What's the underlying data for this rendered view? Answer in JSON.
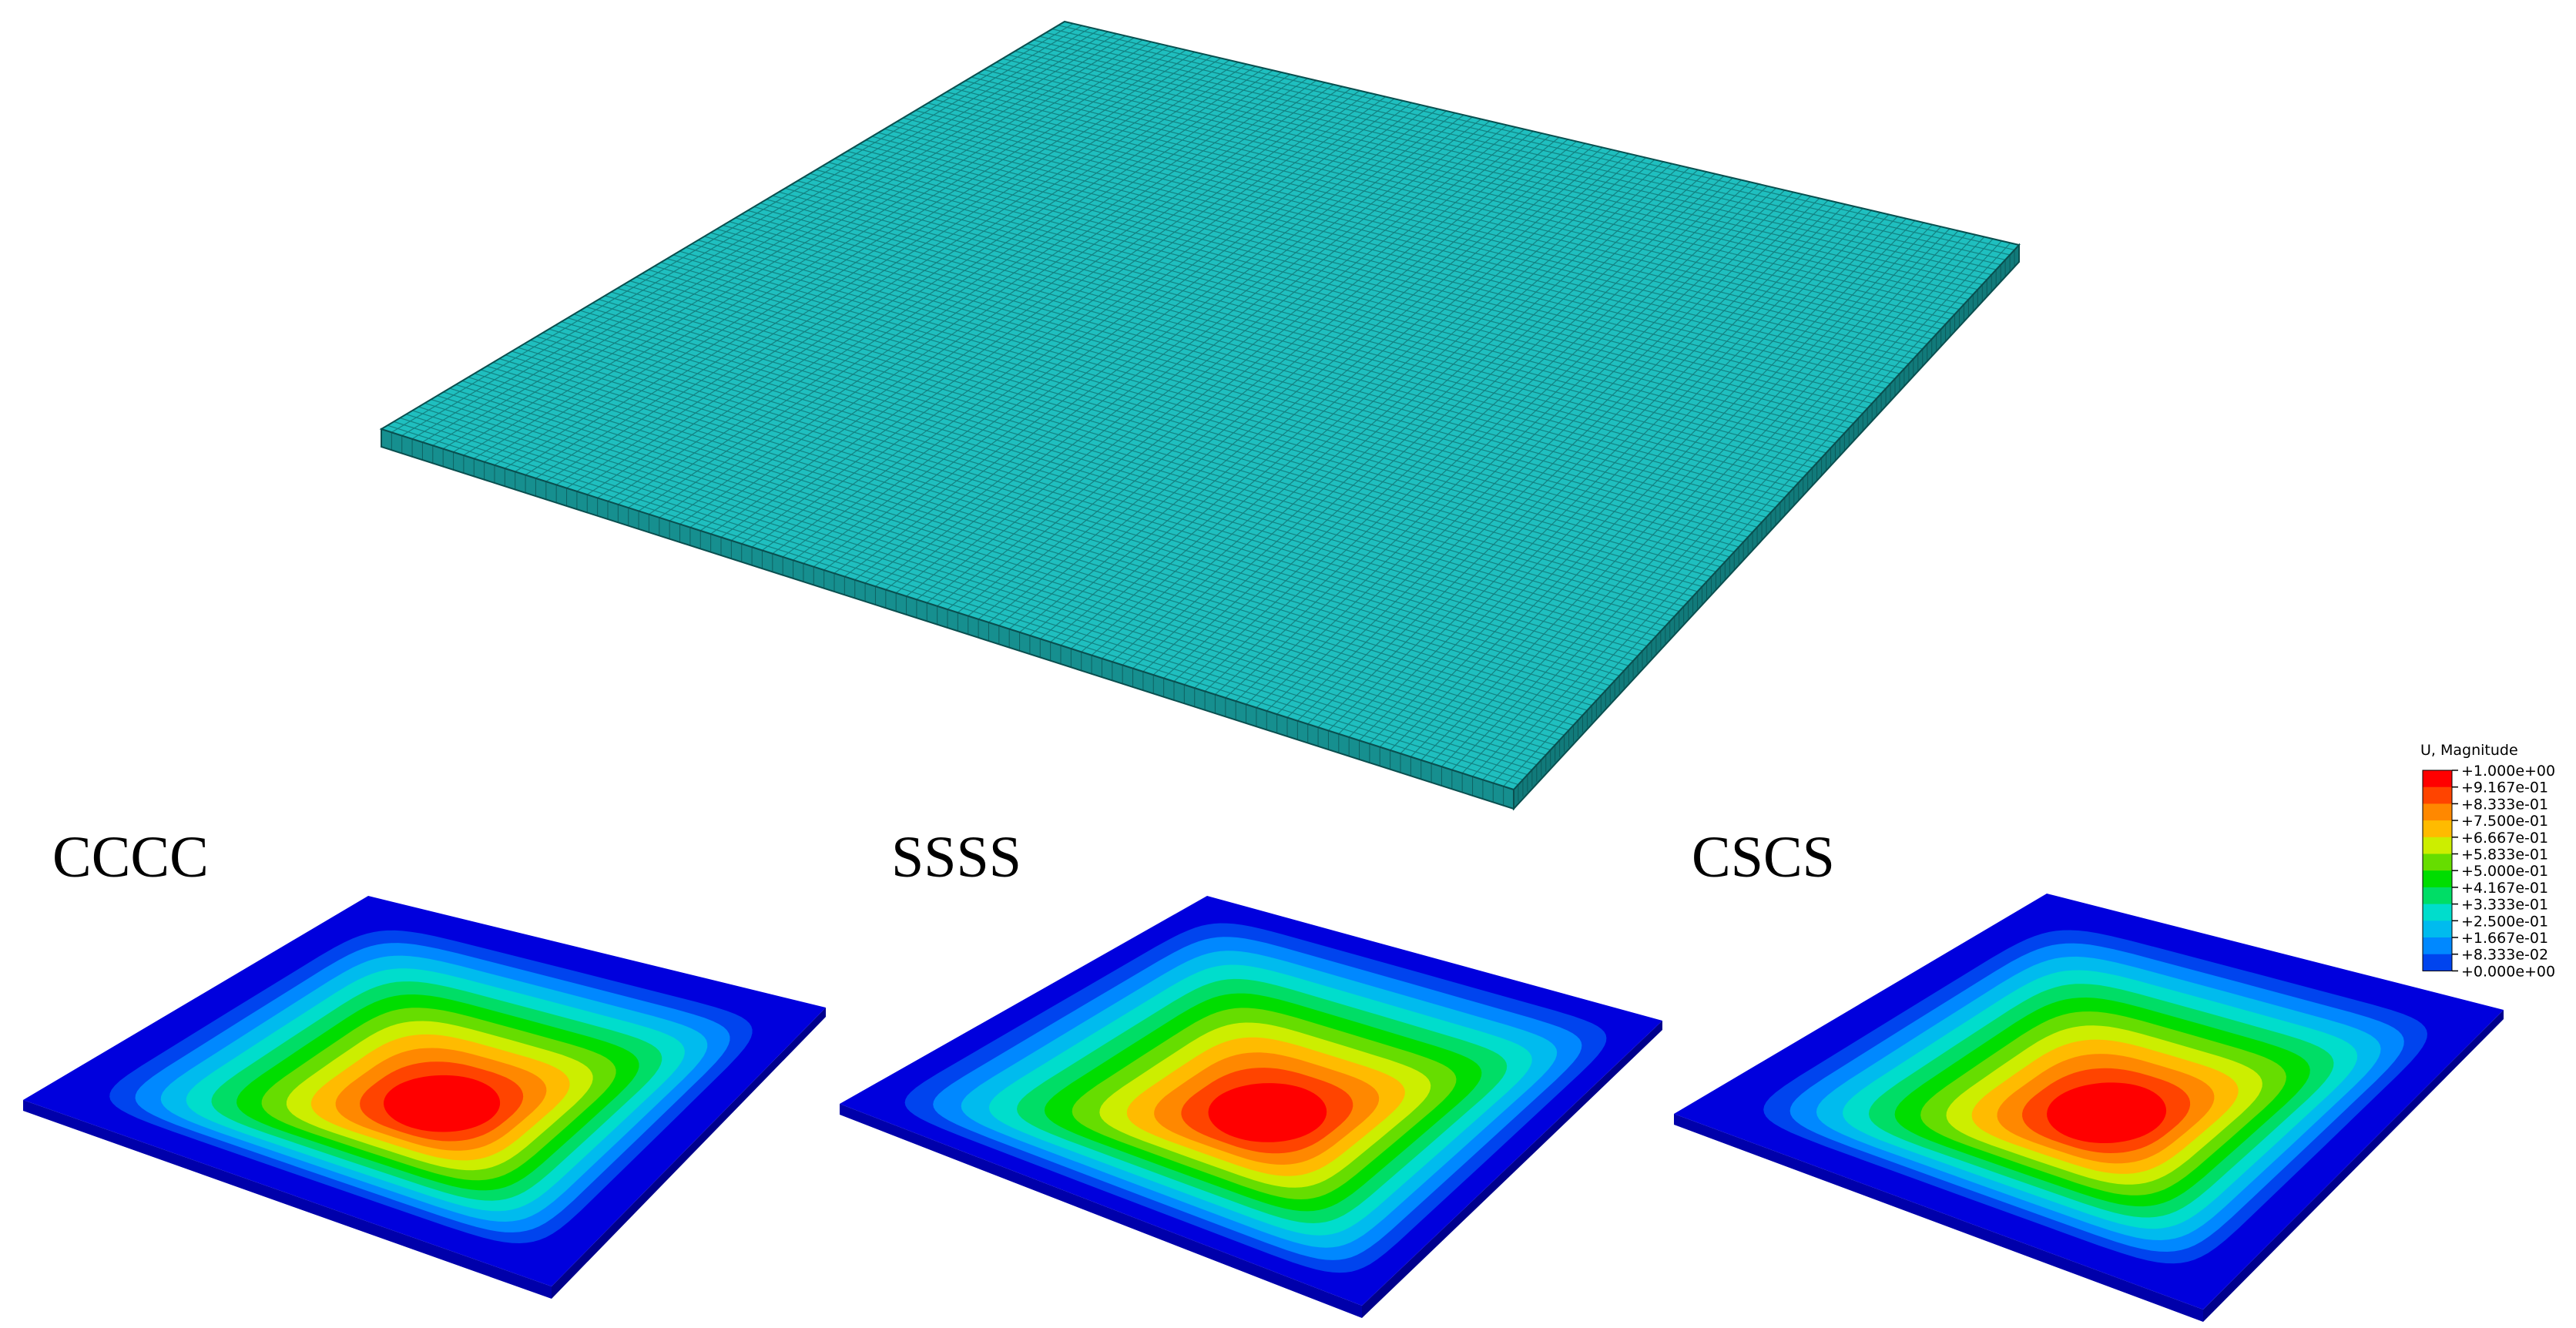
{
  "labels": {
    "cccc": "CCCC",
    "ssss": "SSSS",
    "cscs": "CSCS"
  },
  "legend": {
    "title": "U, Magnitude",
    "ticks": [
      "+1.000e+00",
      "+9.167e-01",
      "+8.333e-01",
      "+7.500e-01",
      "+6.667e-01",
      "+5.833e-01",
      "+5.000e-01",
      "+4.167e-01",
      "+3.333e-01",
      "+2.500e-01",
      "+1.667e-01",
      "+8.333e-02",
      "+0.000e+00"
    ],
    "colors": [
      "#ff0000",
      "#ff4400",
      "#ff8800",
      "#ffbb00",
      "#ccee00",
      "#66dd00",
      "#00dd00",
      "#00dd66",
      "#00ddcc",
      "#00bbee",
      "#0088ff",
      "#0044ee",
      "#0000dd"
    ]
  },
  "colors": {
    "mesh": "#1fbfbf",
    "mesh_line": "#0a4f4f",
    "mesh_side": "#168f8f",
    "plate_side": "#0000aa"
  }
}
